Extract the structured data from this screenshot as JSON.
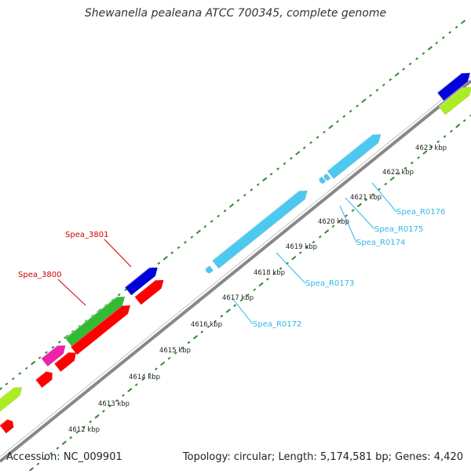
{
  "title": "Shewanella pealeana ATCC 700345, complete genome",
  "footer": {
    "accession": "Accession: NC_009901",
    "summary": "Topology: circular; Length: 5,174,581 bp; Genes: 4,420"
  },
  "colors": {
    "backbone": "#888888",
    "tick": "#2e8b2e",
    "rna": "#4dc9f0",
    "rna_label": "#30b8e8",
    "gene_red": "#ff0000",
    "gene_blue": "#0000dd",
    "gene_green": "#33bb33",
    "gene_lime": "#aaee22",
    "gene_magenta": "#ee22aa",
    "gene_label": "#cc0000"
  },
  "kbp_labels": [
    "4612 kbp",
    "4613 kbp",
    "4614 kbp",
    "4615 kbp",
    "4616 kbp",
    "4617 kbp",
    "4618 kbp",
    "4619 kbp",
    "4620 kbp",
    "4621 kbp",
    "4622 kbp",
    "4623 kbp"
  ],
  "feature_labels": {
    "spea_3800": "Spea_3800",
    "spea_3801": "Spea_3801",
    "spea_r0172": "Spea_R0172",
    "spea_r0173": "Spea_R0173",
    "spea_r0174": "Spea_R0174",
    "spea_r0175": "Spea_R0175",
    "spea_r0176": "Spea_R0176"
  }
}
